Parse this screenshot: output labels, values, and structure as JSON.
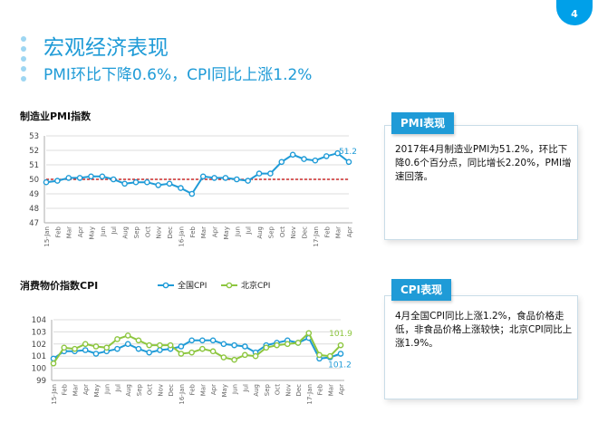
{
  "page": {
    "number": "4"
  },
  "header": {
    "title": "宏观经济表现",
    "subtitle": "PMI环比下降0.6%，CPI同比上涨1.2%"
  },
  "colors": {
    "accent": "#1f9bd7",
    "pmi_line": "#1f9bd7",
    "reference_line": "#c00000",
    "cpi_national": "#1f9bd7",
    "cpi_beijing": "#8dc63f"
  },
  "chart_data": [
    {
      "type": "line",
      "title": "制造业PMI指数",
      "x": [
        "15-Jan",
        "Feb",
        "Mar",
        "Apr",
        "May",
        "Jun",
        "Jul",
        "Aug",
        "Sep",
        "Oct",
        "Nov",
        "Dec",
        "16-Jan",
        "Feb",
        "Mar",
        "Apr",
        "May",
        "Jun",
        "Jul",
        "Aug",
        "Sep",
        "Oct",
        "Nov",
        "Dec",
        "17-Jan",
        "Feb",
        "Mar",
        "Apr"
      ],
      "series": [
        {
          "name": "制造业PMI",
          "values": [
            49.8,
            49.9,
            50.1,
            50.1,
            50.2,
            50.2,
            50.0,
            49.7,
            49.8,
            49.8,
            49.6,
            49.7,
            49.4,
            49.0,
            50.2,
            50.1,
            50.1,
            50.0,
            49.9,
            50.4,
            50.4,
            51.2,
            51.7,
            51.4,
            51.3,
            51.6,
            51.8,
            51.2
          ]
        }
      ],
      "reference_line": 50,
      "label": "51.2",
      "ylim": [
        47,
        53
      ],
      "yticks": [
        "47",
        "48",
        "49",
        "50",
        "51",
        "52",
        "53"
      ],
      "xlabel": "",
      "ylabel": ""
    },
    {
      "type": "line",
      "title": "消费物价指数CPI",
      "x": [
        "15-Jan",
        "Feb",
        "Mar",
        "Apr",
        "May",
        "Jun",
        "Jul",
        "Aug",
        "Sep",
        "Oct",
        "Nov",
        "Dec",
        "16-Jan",
        "Feb",
        "Mar",
        "Apr",
        "May",
        "Jun",
        "Jul",
        "Aug",
        "Sep",
        "Oct",
        "Nov",
        "Dec",
        "17-Jan",
        "Feb",
        "Mar",
        "Apr"
      ],
      "series": [
        {
          "name": "全国CPI",
          "values": [
            100.8,
            101.4,
            101.4,
            101.5,
            101.2,
            101.4,
            101.6,
            102.0,
            101.6,
            101.3,
            101.5,
            101.6,
            101.8,
            102.3,
            102.3,
            102.3,
            102.0,
            101.9,
            101.8,
            101.3,
            101.9,
            102.1,
            102.3,
            102.1,
            102.5,
            100.8,
            100.9,
            101.2
          ]
        },
        {
          "name": "北京CPI",
          "values": [
            100.4,
            101.7,
            101.6,
            102.0,
            101.8,
            101.7,
            102.4,
            102.7,
            102.3,
            101.9,
            101.9,
            101.9,
            101.2,
            101.3,
            101.6,
            101.4,
            100.9,
            100.7,
            101.1,
            101.0,
            101.7,
            101.9,
            102.0,
            102.1,
            102.9,
            101.1,
            101.0,
            101.9
          ]
        }
      ],
      "label_beijing": "101.9",
      "label_national": "101.2",
      "ylim": [
        99,
        104
      ],
      "yticks": [
        "99",
        "100",
        "101",
        "102",
        "103",
        "104"
      ],
      "legend_position": "top",
      "xlabel": "",
      "ylabel": ""
    }
  ],
  "panels": {
    "pmi": {
      "title": "PMI表现",
      "text": "2017年4月制造业PMI为51.2%，环比下降0.6个百分点，同比增长2.20%，PMI增速回落。"
    },
    "cpi": {
      "title": "CPI表现",
      "text": "4月全国CPI同比上涨1.2%，食品价格走低，非食品价格上涨较快；北京CPI同比上涨1.9%。"
    }
  }
}
